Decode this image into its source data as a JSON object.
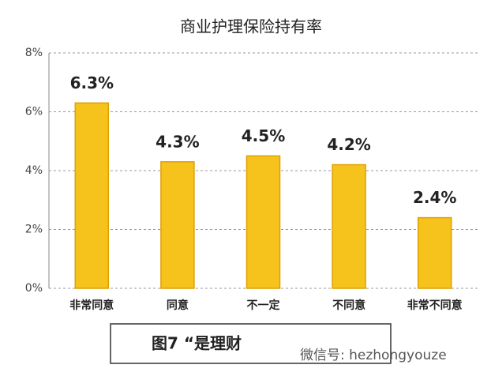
{
  "chart_data": {
    "type": "bar",
    "title": "商业护理保险持有率",
    "categories": [
      "非常同意",
      "同意",
      "不一定",
      "不同意",
      "非常不同意"
    ],
    "values": [
      6.3,
      4.3,
      4.5,
      4.2,
      2.4
    ],
    "value_labels": [
      "6.3%",
      "4.3%",
      "4.5%",
      "4.2%",
      "2.4%"
    ],
    "color": "#f6c21c",
    "ylim": [
      0,
      8
    ],
    "yticks": [
      {
        "value": 0,
        "label": "0%"
      },
      {
        "value": 2,
        "label": "2%"
      },
      {
        "value": 4,
        "label": "4%"
      },
      {
        "value": 6,
        "label": "6%"
      },
      {
        "value": 8,
        "label": "8%"
      }
    ],
    "grid": true,
    "annotations": [
      "图7 “是理财",
      "微信号: hezhongyouze"
    ]
  }
}
